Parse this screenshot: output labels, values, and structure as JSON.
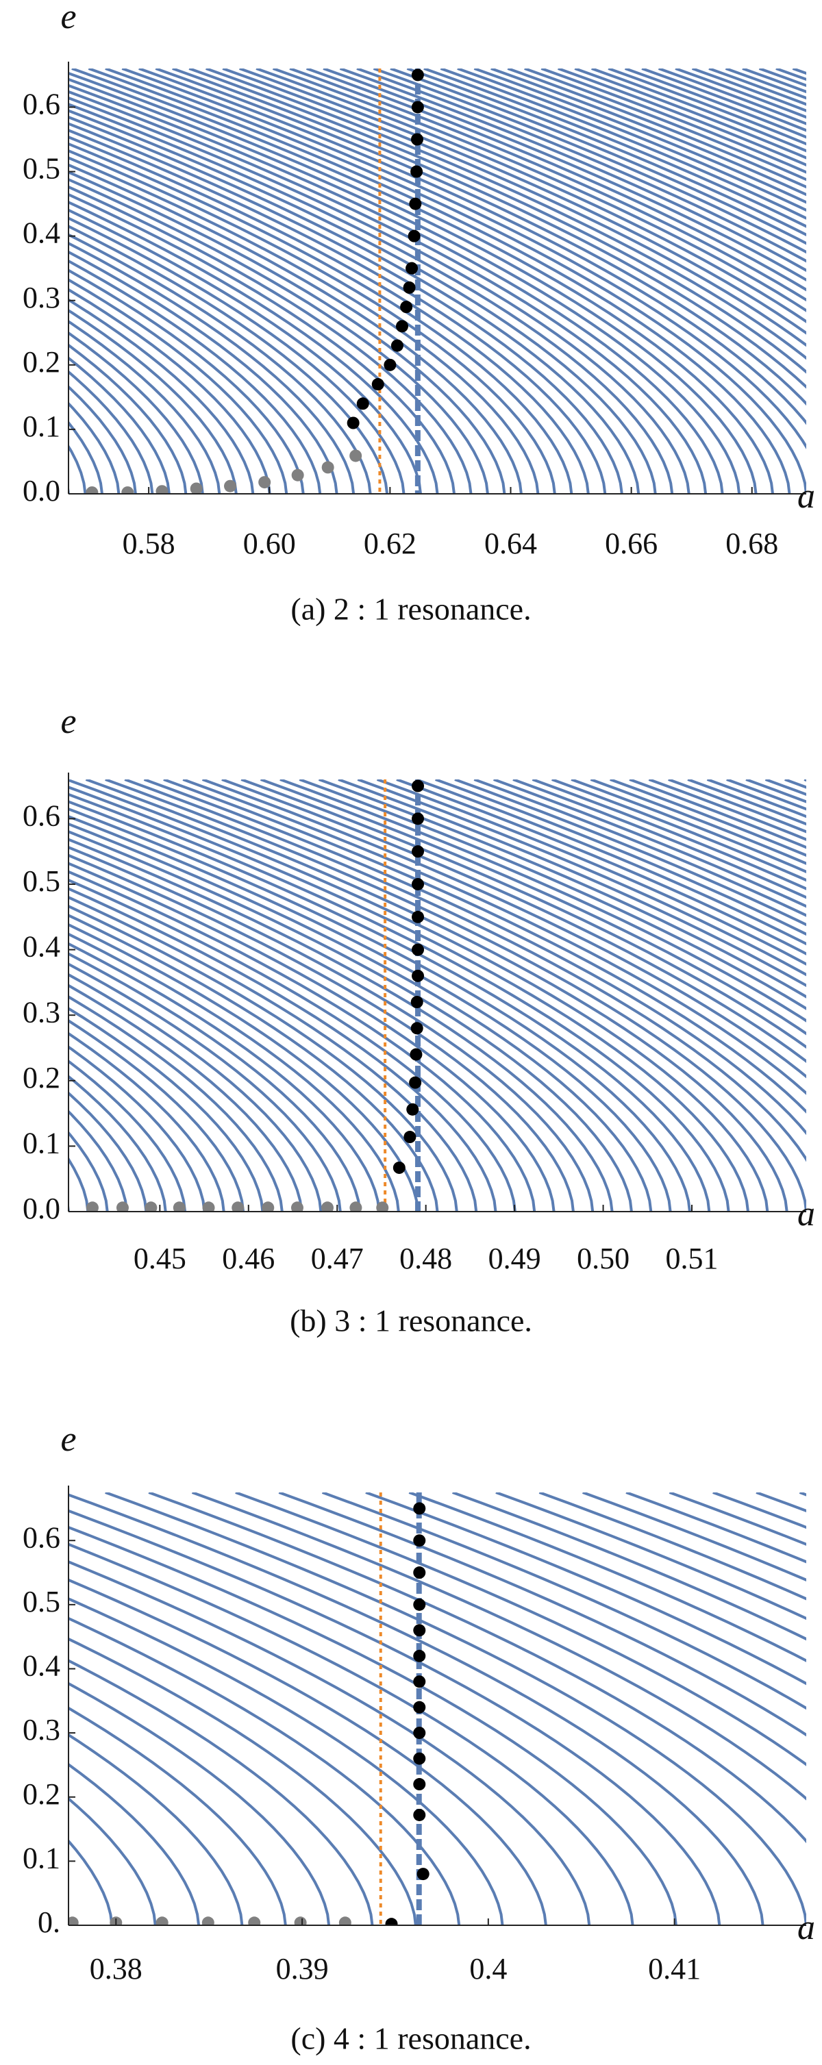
{
  "chart_data": [
    {
      "type": "scatter",
      "x_label": "a",
      "y_label": "e",
      "caption": "(a) 2 : 1 resonance.",
      "xlim": [
        0.5667,
        0.689
      ],
      "ylim": [
        0,
        0.66
      ],
      "xticks": [
        0.58,
        {
          "value": 0.6,
          "label": "0.60"
        },
        0.62,
        0.64,
        0.66,
        0.68
      ],
      "yticks": [
        {
          "value": 0,
          "label": "0.0"
        },
        0.1,
        0.2,
        0.3,
        0.4,
        0.5,
        0.6
      ],
      "contour_color": "#5a7db3",
      "vlines": [
        {
          "x": 0.6183,
          "color": "#ee8a2a",
          "style": "dotted"
        },
        {
          "x": 0.6246,
          "color": "#5a7db3",
          "style": "dashed"
        }
      ],
      "series": [
        {
          "color": "#808080",
          "x": [
            0.5706,
            0.5765,
            0.5822,
            0.5879,
            0.5935,
            0.5992,
            0.6047,
            0.6097,
            0.6143
          ],
          "values": [
            0.002,
            0.002,
            0.004,
            0.008,
            0.012,
            0.018,
            0.029,
            0.041,
            0.059
          ]
        },
        {
          "color": "#000000",
          "x": [
            0.6139,
            0.6155,
            0.618,
            0.62,
            0.6212,
            0.622,
            0.6227,
            0.6232,
            0.6236,
            0.624,
            0.6242,
            0.6244,
            0.6245,
            0.6246,
            0.6246
          ],
          "values": [
            0.11,
            0.14,
            0.17,
            0.2,
            0.23,
            0.26,
            0.29,
            0.32,
            0.35,
            0.4,
            0.45,
            0.5,
            0.55,
            0.6,
            0.65
          ]
        }
      ]
    },
    {
      "type": "scatter",
      "x_label": "a",
      "y_label": "e",
      "caption": "(b) 3 : 1 resonance.",
      "xlim": [
        0.4397,
        0.5229
      ],
      "ylim": [
        0,
        0.66
      ],
      "xticks": [
        0.45,
        0.46,
        0.47,
        0.48,
        0.49,
        {
          "value": 0.5,
          "label": "0.50"
        },
        0.51
      ],
      "yticks": [
        {
          "value": 0,
          "label": "0.0"
        },
        0.1,
        0.2,
        0.3,
        0.4,
        0.5,
        0.6
      ],
      "contour_color": "#5a7db3",
      "vlines": [
        {
          "x": 0.4754,
          "color": "#ee8a2a",
          "style": "dotted"
        },
        {
          "x": 0.4791,
          "color": "#5a7db3",
          "style": "dashed"
        }
      ],
      "series": [
        {
          "color": "#808080",
          "x": [
            0.4424,
            0.4458,
            0.449,
            0.4522,
            0.4555,
            0.4588,
            0.4622,
            0.4655,
            0.4689,
            0.4721,
            0.4751
          ],
          "values": [
            0.006,
            0.006,
            0.006,
            0.006,
            0.006,
            0.006,
            0.006,
            0.006,
            0.006,
            0.006,
            0.006
          ]
        },
        {
          "color": "#000000",
          "x": [
            0.477,
            0.4782,
            0.4785,
            0.4788,
            0.4789,
            0.479,
            0.479,
            0.4791,
            0.4791,
            0.4791,
            0.4791,
            0.4791,
            0.4791,
            0.4791
          ],
          "values": [
            0.067,
            0.114,
            0.156,
            0.197,
            0.24,
            0.28,
            0.32,
            0.36,
            0.4,
            0.45,
            0.5,
            0.55,
            0.6,
            0.65
          ]
        }
      ]
    },
    {
      "type": "scatter",
      "x_label": "a",
      "y_label": "e",
      "caption": "(c) 4 : 1 resonance.",
      "xlim": [
        0.37745,
        0.41708
      ],
      "ylim": [
        0,
        0.675
      ],
      "xticks": [
        0.38,
        0.39,
        0.4,
        0.41
      ],
      "yticks": [
        {
          "value": 0,
          "label": "0."
        },
        0.1,
        0.2,
        0.3,
        0.4,
        0.5,
        0.6
      ],
      "contour_color": "#5a7db3",
      "vlines": [
        {
          "x": 0.39422,
          "color": "#ee8a2a",
          "style": "dotted"
        },
        {
          "x": 0.39628,
          "color": "#5a7db3",
          "style": "dashed"
        }
      ],
      "series": [
        {
          "color": "#808080",
          "x": [
            0.37766,
            0.38,
            0.38248,
            0.38495,
            0.38743,
            0.38991,
            0.39231
          ],
          "values": [
            0.004,
            0.004,
            0.004,
            0.004,
            0.004,
            0.004,
            0.004
          ]
        },
        {
          "color": "#000000",
          "x": [
            0.3948,
            0.3965,
            0.3963,
            0.3963,
            0.3963,
            0.3963,
            0.3963,
            0.3963,
            0.3963,
            0.3963,
            0.3963,
            0.3963,
            0.3963,
            0.3963
          ],
          "values": [
            0.002,
            0.08,
            0.172,
            0.22,
            0.26,
            0.3,
            0.34,
            0.38,
            0.42,
            0.46,
            0.5,
            0.55,
            0.6,
            0.65
          ]
        }
      ]
    }
  ]
}
